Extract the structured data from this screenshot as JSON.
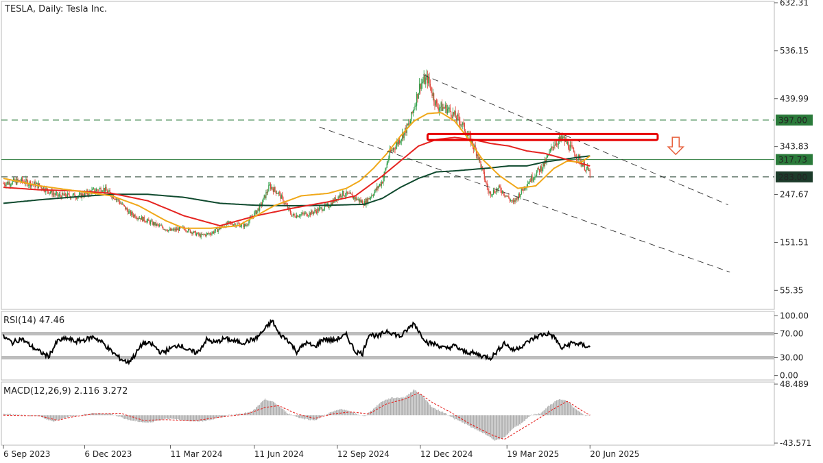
{
  "header": {
    "title": "TESLA, Daily:  Tesla Inc."
  },
  "colors": {
    "candle_up": "#2e9d46",
    "candle_down": "#e0463a",
    "ma_fast": "#f0a819",
    "ma_mid": "#e52421",
    "ma_slow": "#0f4a2e",
    "level_green": "#2a7a3a",
    "box": "#e60000",
    "arrow": "#e8603c",
    "rsi_line": "#000000",
    "rsi_band": "#bdbdbd",
    "macd_hist": "#9a9a9a",
    "macd_signal": "#e52421"
  },
  "chart_data": [
    {
      "type": "line",
      "panel": "price",
      "title": "TESLA, Daily:  Tesla Inc.",
      "ylim": [
        20,
        632.31
      ],
      "y_ticks": [
        632.31,
        536.15,
        439.99,
        343.83,
        247.67,
        151.51,
        55.35
      ],
      "x_ticks": [
        "6 Sep 2023",
        "6 Dec 2023",
        "11 Mar 2024",
        "11 Jun 2024",
        "12 Sep 2024",
        "12 Dec 2024",
        "19 Mar 2025",
        "20 Jun 2025"
      ],
      "x_tick_index": [
        0,
        90,
        185,
        278,
        370,
        462,
        558,
        650
      ],
      "price_path": [
        [
          0,
          270
        ],
        [
          20,
          275
        ],
        [
          40,
          265
        ],
        [
          60,
          245
        ],
        [
          85,
          245
        ],
        [
          100,
          255
        ],
        [
          110,
          260
        ],
        [
          125,
          240
        ],
        [
          140,
          210
        ],
        [
          165,
          190
        ],
        [
          185,
          175
        ],
        [
          200,
          180
        ],
        [
          218,
          165
        ],
        [
          230,
          170
        ],
        [
          250,
          190
        ],
        [
          268,
          185
        ],
        [
          285,
          225
        ],
        [
          295,
          265
        ],
        [
          305,
          250
        ],
        [
          320,
          205
        ],
        [
          340,
          210
        ],
        [
          360,
          225
        ],
        [
          375,
          250
        ],
        [
          385,
          245
        ],
        [
          400,
          230
        ],
        [
          412,
          255
        ],
        [
          420,
          275
        ],
        [
          428,
          330
        ],
        [
          438,
          355
        ],
        [
          450,
          390
        ],
        [
          462,
          470
        ],
        [
          470,
          480
        ],
        [
          480,
          425
        ],
        [
          492,
          420
        ],
        [
          508,
          390
        ],
        [
          525,
          330
        ],
        [
          538,
          250
        ],
        [
          550,
          260
        ],
        [
          565,
          230
        ],
        [
          580,
          270
        ],
        [
          600,
          310
        ],
        [
          610,
          350
        ],
        [
          620,
          360
        ],
        [
          635,
          325
        ],
        [
          650,
          290
        ]
      ],
      "series": [
        {
          "role": "ma_fast",
          "points": [
            [
              0,
              280
            ],
            [
              40,
              265
            ],
            [
              80,
              255
            ],
            [
              120,
              245
            ],
            [
              150,
              225
            ],
            [
              180,
              195
            ],
            [
              200,
              180
            ],
            [
              230,
              180
            ],
            [
              260,
              185
            ],
            [
              300,
              225
            ],
            [
              330,
              245
            ],
            [
              360,
              250
            ],
            [
              380,
              260
            ],
            [
              395,
              275
            ],
            [
              410,
              300
            ],
            [
              425,
              330
            ],
            [
              440,
              365
            ],
            [
              455,
              395
            ],
            [
              470,
              410
            ],
            [
              485,
              412
            ],
            [
              500,
              395
            ],
            [
              515,
              360
            ],
            [
              530,
              320
            ],
            [
              550,
              285
            ],
            [
              570,
              260
            ],
            [
              590,
              265
            ],
            [
              610,
              300
            ],
            [
              625,
              315
            ],
            [
              640,
              312
            ],
            [
              650,
              325
            ]
          ]
        },
        {
          "role": "ma_mid",
          "points": [
            [
              0,
              262
            ],
            [
              40,
              257
            ],
            [
              80,
              255
            ],
            [
              120,
              250
            ],
            [
              160,
              235
            ],
            [
              200,
              205
            ],
            [
              240,
              185
            ],
            [
              280,
              205
            ],
            [
              320,
              220
            ],
            [
              360,
              233
            ],
            [
              390,
              245
            ],
            [
              420,
              285
            ],
            [
              440,
              315
            ],
            [
              460,
              345
            ],
            [
              480,
              358
            ],
            [
              500,
              362
            ],
            [
              520,
              358
            ],
            [
              540,
              350
            ],
            [
              560,
              345
            ],
            [
              580,
              335
            ],
            [
              600,
              330
            ],
            [
              620,
              320
            ],
            [
              640,
              310
            ],
            [
              650,
              305
            ]
          ]
        },
        {
          "role": "ma_slow",
          "points": [
            [
              0,
              230
            ],
            [
              40,
              237
            ],
            [
              80,
              243
            ],
            [
              120,
              248
            ],
            [
              160,
              248
            ],
            [
              200,
              242
            ],
            [
              240,
              230
            ],
            [
              280,
              226
            ],
            [
              320,
              225
            ],
            [
              360,
              226
            ],
            [
              400,
              228
            ],
            [
              420,
              240
            ],
            [
              440,
              262
            ],
            [
              460,
              280
            ],
            [
              480,
              293
            ],
            [
              500,
              295
            ],
            [
              520,
              298
            ],
            [
              540,
              301
            ],
            [
              560,
              305
            ],
            [
              580,
              305
            ],
            [
              600,
              313
            ],
            [
              620,
              318
            ],
            [
              640,
              323
            ],
            [
              650,
              325
            ]
          ]
        }
      ],
      "annotations": [
        {
          "type": "hline",
          "value": 397.0,
          "label": "397.00",
          "style": "dashed"
        },
        {
          "type": "hline",
          "value": 317.73,
          "label": "317.73",
          "style": "solid"
        },
        {
          "type": "hline",
          "value": 283.0,
          "label": "283.00",
          "style": "dashed"
        },
        {
          "type": "trendline",
          "points": [
            [
              465,
              488
            ],
            [
              803,
              227
            ]
          ]
        },
        {
          "type": "trendline",
          "points": [
            [
              350,
              383
            ],
            [
              805,
              92
            ]
          ]
        },
        {
          "type": "box",
          "x": [
            470,
            725
          ],
          "y": [
            357,
            369
          ]
        },
        {
          "type": "arrow",
          "direction": "down",
          "x": 745,
          "y": 328
        }
      ],
      "index_span": [
        0,
        855
      ]
    },
    {
      "type": "line",
      "panel": "rsi",
      "title": "RSI(14) 47.46",
      "ylim": [
        -5,
        105
      ],
      "y_ticks": [
        100.0,
        70.0,
        30.0,
        0.0
      ],
      "y_tick_labels": [
        "100.00",
        "70.00",
        "30.00",
        "0.00"
      ],
      "levels": [
        70,
        30
      ],
      "points": [
        [
          0,
          65
        ],
        [
          10,
          55
        ],
        [
          20,
          62
        ],
        [
          30,
          50
        ],
        [
          40,
          40
        ],
        [
          50,
          32
        ],
        [
          60,
          58
        ],
        [
          70,
          62
        ],
        [
          80,
          57
        ],
        [
          90,
          60
        ],
        [
          100,
          65
        ],
        [
          110,
          55
        ],
        [
          120,
          40
        ],
        [
          130,
          28
        ],
        [
          138,
          22
        ],
        [
          145,
          33
        ],
        [
          155,
          55
        ],
        [
          165,
          52
        ],
        [
          175,
          38
        ],
        [
          185,
          45
        ],
        [
          195,
          52
        ],
        [
          205,
          42
        ],
        [
          215,
          38
        ],
        [
          225,
          60
        ],
        [
          235,
          55
        ],
        [
          245,
          62
        ],
        [
          255,
          58
        ],
        [
          265,
          55
        ],
        [
          280,
          62
        ],
        [
          290,
          78
        ],
        [
          298,
          92
        ],
        [
          305,
          70
        ],
        [
          315,
          60
        ],
        [
          325,
          40
        ],
        [
          335,
          55
        ],
        [
          345,
          48
        ],
        [
          355,
          62
        ],
        [
          365,
          58
        ],
        [
          380,
          68
        ],
        [
          390,
          40
        ],
        [
          398,
          37
        ],
        [
          405,
          70
        ],
        [
          415,
          65
        ],
        [
          425,
          75
        ],
        [
          440,
          65
        ],
        [
          455,
          88
        ],
        [
          462,
          70
        ],
        [
          470,
          55
        ],
        [
          480,
          52
        ],
        [
          490,
          45
        ],
        [
          500,
          50
        ],
        [
          510,
          40
        ],
        [
          520,
          38
        ],
        [
          530,
          33
        ],
        [
          540,
          30
        ],
        [
          545,
          37
        ],
        [
          555,
          55
        ],
        [
          565,
          42
        ],
        [
          575,
          50
        ],
        [
          585,
          60
        ],
        [
          595,
          68
        ],
        [
          605,
          70
        ],
        [
          612,
          62
        ],
        [
          618,
          45
        ],
        [
          630,
          55
        ],
        [
          640,
          52
        ],
        [
          650,
          47.46
        ]
      ]
    },
    {
      "type": "bar",
      "panel": "macd",
      "title": "MACD(12,26,9) 2.116 3.272",
      "ylim": [
        -43.571,
        48.489
      ],
      "y_ticks": [
        48.489,
        -43.571
      ],
      "histogram_path": [
        [
          0,
          2
        ],
        [
          40,
          -2
        ],
        [
          55,
          -10
        ],
        [
          70,
          -3
        ],
        [
          100,
          3
        ],
        [
          120,
          2
        ],
        [
          140,
          -8
        ],
        [
          160,
          -12
        ],
        [
          180,
          -5
        ],
        [
          200,
          -8
        ],
        [
          220,
          -10
        ],
        [
          250,
          0
        ],
        [
          275,
          5
        ],
        [
          290,
          25
        ],
        [
          300,
          20
        ],
        [
          315,
          3
        ],
        [
          330,
          -5
        ],
        [
          345,
          -8
        ],
        [
          360,
          3
        ],
        [
          375,
          10
        ],
        [
          385,
          5
        ],
        [
          400,
          -2
        ],
        [
          410,
          10
        ],
        [
          420,
          22
        ],
        [
          430,
          27
        ],
        [
          445,
          28
        ],
        [
          455,
          40
        ],
        [
          465,
          30
        ],
        [
          475,
          12
        ],
        [
          490,
          3
        ],
        [
          500,
          -6
        ],
        [
          510,
          -12
        ],
        [
          520,
          -20
        ],
        [
          535,
          -30
        ],
        [
          545,
          -40
        ],
        [
          555,
          -35
        ],
        [
          565,
          -20
        ],
        [
          575,
          -12
        ],
        [
          585,
          0
        ],
        [
          595,
          3
        ],
        [
          605,
          15
        ],
        [
          615,
          25
        ],
        [
          625,
          22
        ],
        [
          635,
          8
        ],
        [
          645,
          0
        ],
        [
          650,
          0
        ]
      ],
      "signal_path": [
        [
          0,
          0
        ],
        [
          40,
          -1
        ],
        [
          60,
          -8
        ],
        [
          75,
          -3
        ],
        [
          100,
          2
        ],
        [
          130,
          3
        ],
        [
          155,
          -8
        ],
        [
          180,
          -7
        ],
        [
          210,
          -9
        ],
        [
          240,
          -3
        ],
        [
          270,
          2
        ],
        [
          290,
          12
        ],
        [
          305,
          15
        ],
        [
          325,
          2
        ],
        [
          345,
          -5
        ],
        [
          365,
          2
        ],
        [
          385,
          5
        ],
        [
          405,
          2
        ],
        [
          425,
          18
        ],
        [
          445,
          25
        ],
        [
          460,
          35
        ],
        [
          475,
          20
        ],
        [
          495,
          5
        ],
        [
          515,
          -12
        ],
        [
          540,
          -30
        ],
        [
          555,
          -38
        ],
        [
          570,
          -25
        ],
        [
          590,
          -8
        ],
        [
          610,
          10
        ],
        [
          625,
          22
        ],
        [
          640,
          8
        ],
        [
          650,
          0
        ]
      ]
    }
  ]
}
